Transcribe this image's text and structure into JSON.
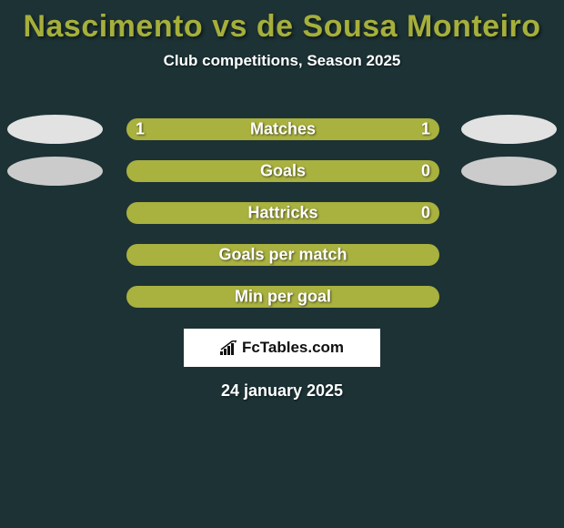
{
  "title": "Nascimento vs de Sousa Monteiro",
  "subtitle": "Club competitions, Season 2025",
  "date": "24 january 2025",
  "logo_text": "FcTables.com",
  "colors": {
    "background": "#1c3235",
    "title": "#a6af3a",
    "text_white": "#ffffff",
    "photo_light": "#e2e2e2",
    "photo_dark": "#cbcbcb",
    "bar_left": "#a9b13f",
    "bar_right": "#a9b13f",
    "logo_bg": "#ffffff",
    "logo_text": "#101010"
  },
  "typography": {
    "title_fontsize": 34,
    "subtitle_fontsize": 17,
    "label_fontsize": 18,
    "value_fontsize": 18,
    "date_fontsize": 18
  },
  "stats": [
    {
      "label": "Matches",
      "left_value": "1",
      "right_value": "1",
      "left_pct": 50,
      "right_pct": 50,
      "left_color": "#a9b13f",
      "right_color": "#a9b13f",
      "show_photos": true,
      "photo_left_color": "#e2e2e2",
      "photo_right_color": "#e2e2e2"
    },
    {
      "label": "Goals",
      "left_value": "",
      "right_value": "0",
      "left_pct": 50,
      "right_pct": 50,
      "left_color": "#a9b13f",
      "right_color": "#a9b13f",
      "show_photos": true,
      "photo_left_color": "#cbcbcb",
      "photo_right_color": "#cbcbcb"
    },
    {
      "label": "Hattricks",
      "left_value": "",
      "right_value": "0",
      "left_pct": 50,
      "right_pct": 50,
      "left_color": "#a9b13f",
      "right_color": "#a9b13f",
      "show_photos": false
    },
    {
      "label": "Goals per match",
      "left_value": "",
      "right_value": "",
      "left_pct": 50,
      "right_pct": 50,
      "left_color": "#a9b13f",
      "right_color": "#a9b13f",
      "show_photos": false
    },
    {
      "label": "Min per goal",
      "left_value": "",
      "right_value": "",
      "left_pct": 50,
      "right_pct": 50,
      "left_color": "#a9b13f",
      "right_color": "#a9b13f",
      "show_photos": false
    }
  ]
}
